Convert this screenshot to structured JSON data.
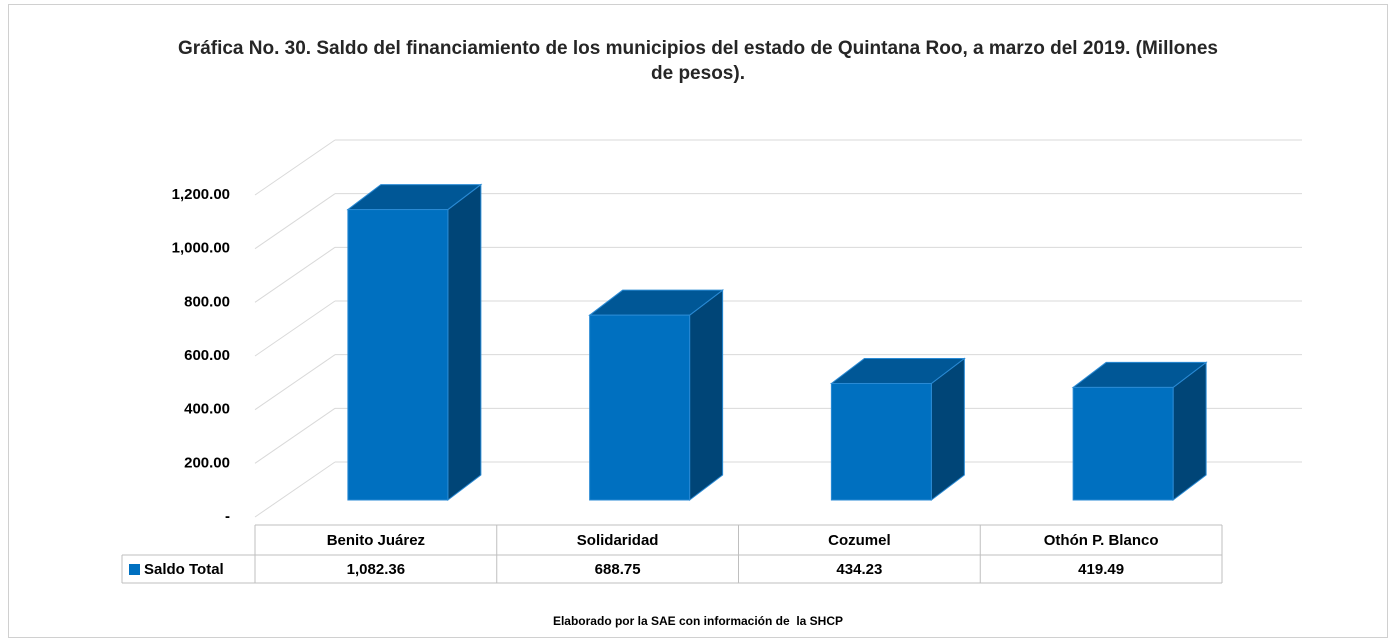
{
  "chart_data": {
    "type": "bar3d",
    "title": "Gráfica No. 30. Saldo del financiamiento de los municipios del estado de Quintana Roo, a marzo del 2019. (Millones de pesos).",
    "categories": [
      "Benito Juárez",
      "Solidaridad",
      "Cozumel",
      "Othón P. Blanco"
    ],
    "series": [
      {
        "name": "Saldo Total",
        "color": "#0070c0",
        "values": [
          1082.36,
          688.75,
          434.23,
          419.49
        ],
        "value_labels": [
          "1,082.36",
          "688.75",
          "434.23",
          "419.49"
        ]
      }
    ],
    "ylim": [
      0,
      1200
    ],
    "yticks": [
      {
        "value": 0,
        "label": "-"
      },
      {
        "value": 200,
        "label": "200.00"
      },
      {
        "value": 400,
        "label": "400.00"
      },
      {
        "value": 600,
        "label": "600.00"
      },
      {
        "value": 800,
        "label": "800.00"
      },
      {
        "value": 1000,
        "label": "1,000.00"
      },
      {
        "value": 1200,
        "label": "1,200.00"
      }
    ],
    "grid": true,
    "caption": "Elaborado por la SAE con información de  la SHCP"
  }
}
